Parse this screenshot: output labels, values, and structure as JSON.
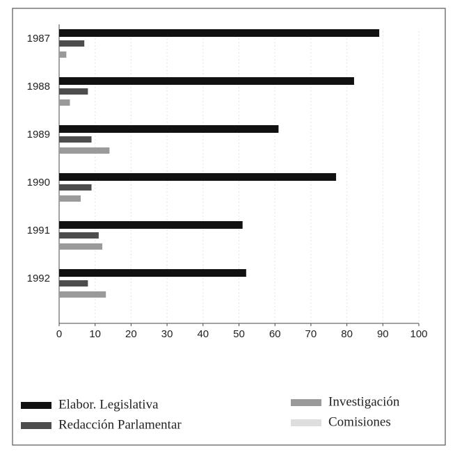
{
  "chart_data": {
    "type": "hbar",
    "categories": [
      "1987",
      "1988",
      "1989",
      "1990",
      "1991",
      "1992"
    ],
    "series": [
      {
        "name": "Elabor. Legislativa",
        "color": "#111111",
        "values": [
          89,
          82,
          61,
          77,
          51,
          52
        ]
      },
      {
        "name": "Redacción Parlamentar",
        "color": "#4d4d4d",
        "values": [
          7,
          8,
          9,
          9,
          11,
          8
        ]
      },
      {
        "name": "Investigación",
        "color": "#9a9a9a",
        "values": [
          2,
          3,
          14,
          6,
          12,
          13
        ]
      },
      {
        "name": "Comisiones",
        "color": "#dedede",
        "values": [
          0,
          0,
          0,
          0,
          0,
          0
        ]
      }
    ],
    "xlim": [
      0,
      100
    ],
    "xticks": [
      0,
      10,
      20,
      30,
      40,
      50,
      60,
      70,
      80,
      90,
      100
    ],
    "grid": true,
    "legend": "bottom"
  }
}
